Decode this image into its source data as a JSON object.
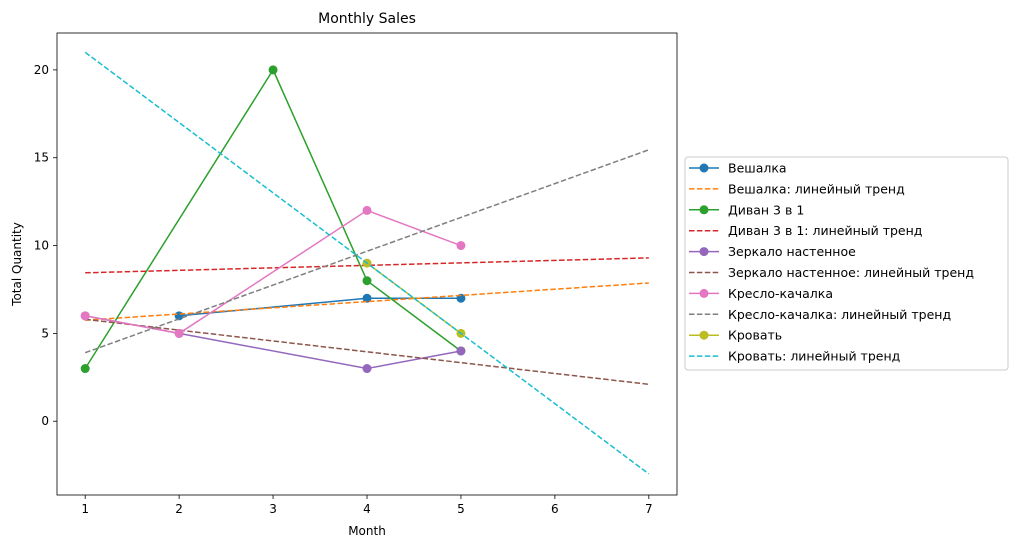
{
  "chart_data": {
    "type": "line",
    "title": "Monthly Sales",
    "xlabel": "Month",
    "ylabel": "Total Quantity",
    "xlim": [
      0.7,
      7.3
    ],
    "ylim": [
      -4.2,
      22.1
    ],
    "xticks": [
      1,
      2,
      3,
      4,
      5,
      6,
      7
    ],
    "yticks": [
      0,
      5,
      10,
      15,
      20
    ],
    "grid": false,
    "legend_position": "right-outside",
    "series": [
      {
        "name": "Вешалка",
        "style": "solid-marker",
        "color": "#1f77b4",
        "x": [
          2,
          4,
          5
        ],
        "y": [
          6,
          7,
          7
        ]
      },
      {
        "name": "Вешалка: линейный тренд",
        "style": "dashed",
        "color": "#ff7f0e",
        "x": [
          1,
          7
        ],
        "y": [
          5.75,
          7.87
        ]
      },
      {
        "name": "Диван 3 в 1",
        "style": "solid-marker",
        "color": "#2ca02c",
        "x": [
          1,
          3,
          4,
          5
        ],
        "y": [
          3,
          20,
          8,
          4
        ]
      },
      {
        "name": "Диван 3 в 1: линейный тренд",
        "style": "dashed",
        "color": "#d62728",
        "x": [
          1,
          7
        ],
        "y": [
          8.45,
          9.3
        ]
      },
      {
        "name": "Зеркало настенное",
        "style": "solid-marker",
        "color": "#9467bd",
        "x": [
          1,
          2,
          4,
          5
        ],
        "y": [
          6,
          5,
          3,
          4
        ]
      },
      {
        "name": "Зеркало настенное: линейный тренд",
        "style": "dashed",
        "color": "#8c564b",
        "x": [
          1,
          7
        ],
        "y": [
          5.8,
          2.1
        ]
      },
      {
        "name": "Кресло-качалка",
        "style": "solid-marker",
        "color": "#e377c2",
        "x": [
          1,
          2,
          4,
          5
        ],
        "y": [
          6,
          5,
          12,
          10
        ]
      },
      {
        "name": "Кресло-качалка: линейный тренд",
        "style": "dashed",
        "color": "#7f7f7f",
        "x": [
          1,
          7
        ],
        "y": [
          3.9,
          15.45
        ]
      },
      {
        "name": "Кровать",
        "style": "solid-marker",
        "color": "#bcbd22",
        "x": [
          4,
          5
        ],
        "y": [
          9,
          5
        ]
      },
      {
        "name": "Кровать: линейный тренд",
        "style": "dashed",
        "color": "#17becf",
        "x": [
          1,
          7
        ],
        "y": [
          21,
          -3
        ]
      }
    ]
  }
}
